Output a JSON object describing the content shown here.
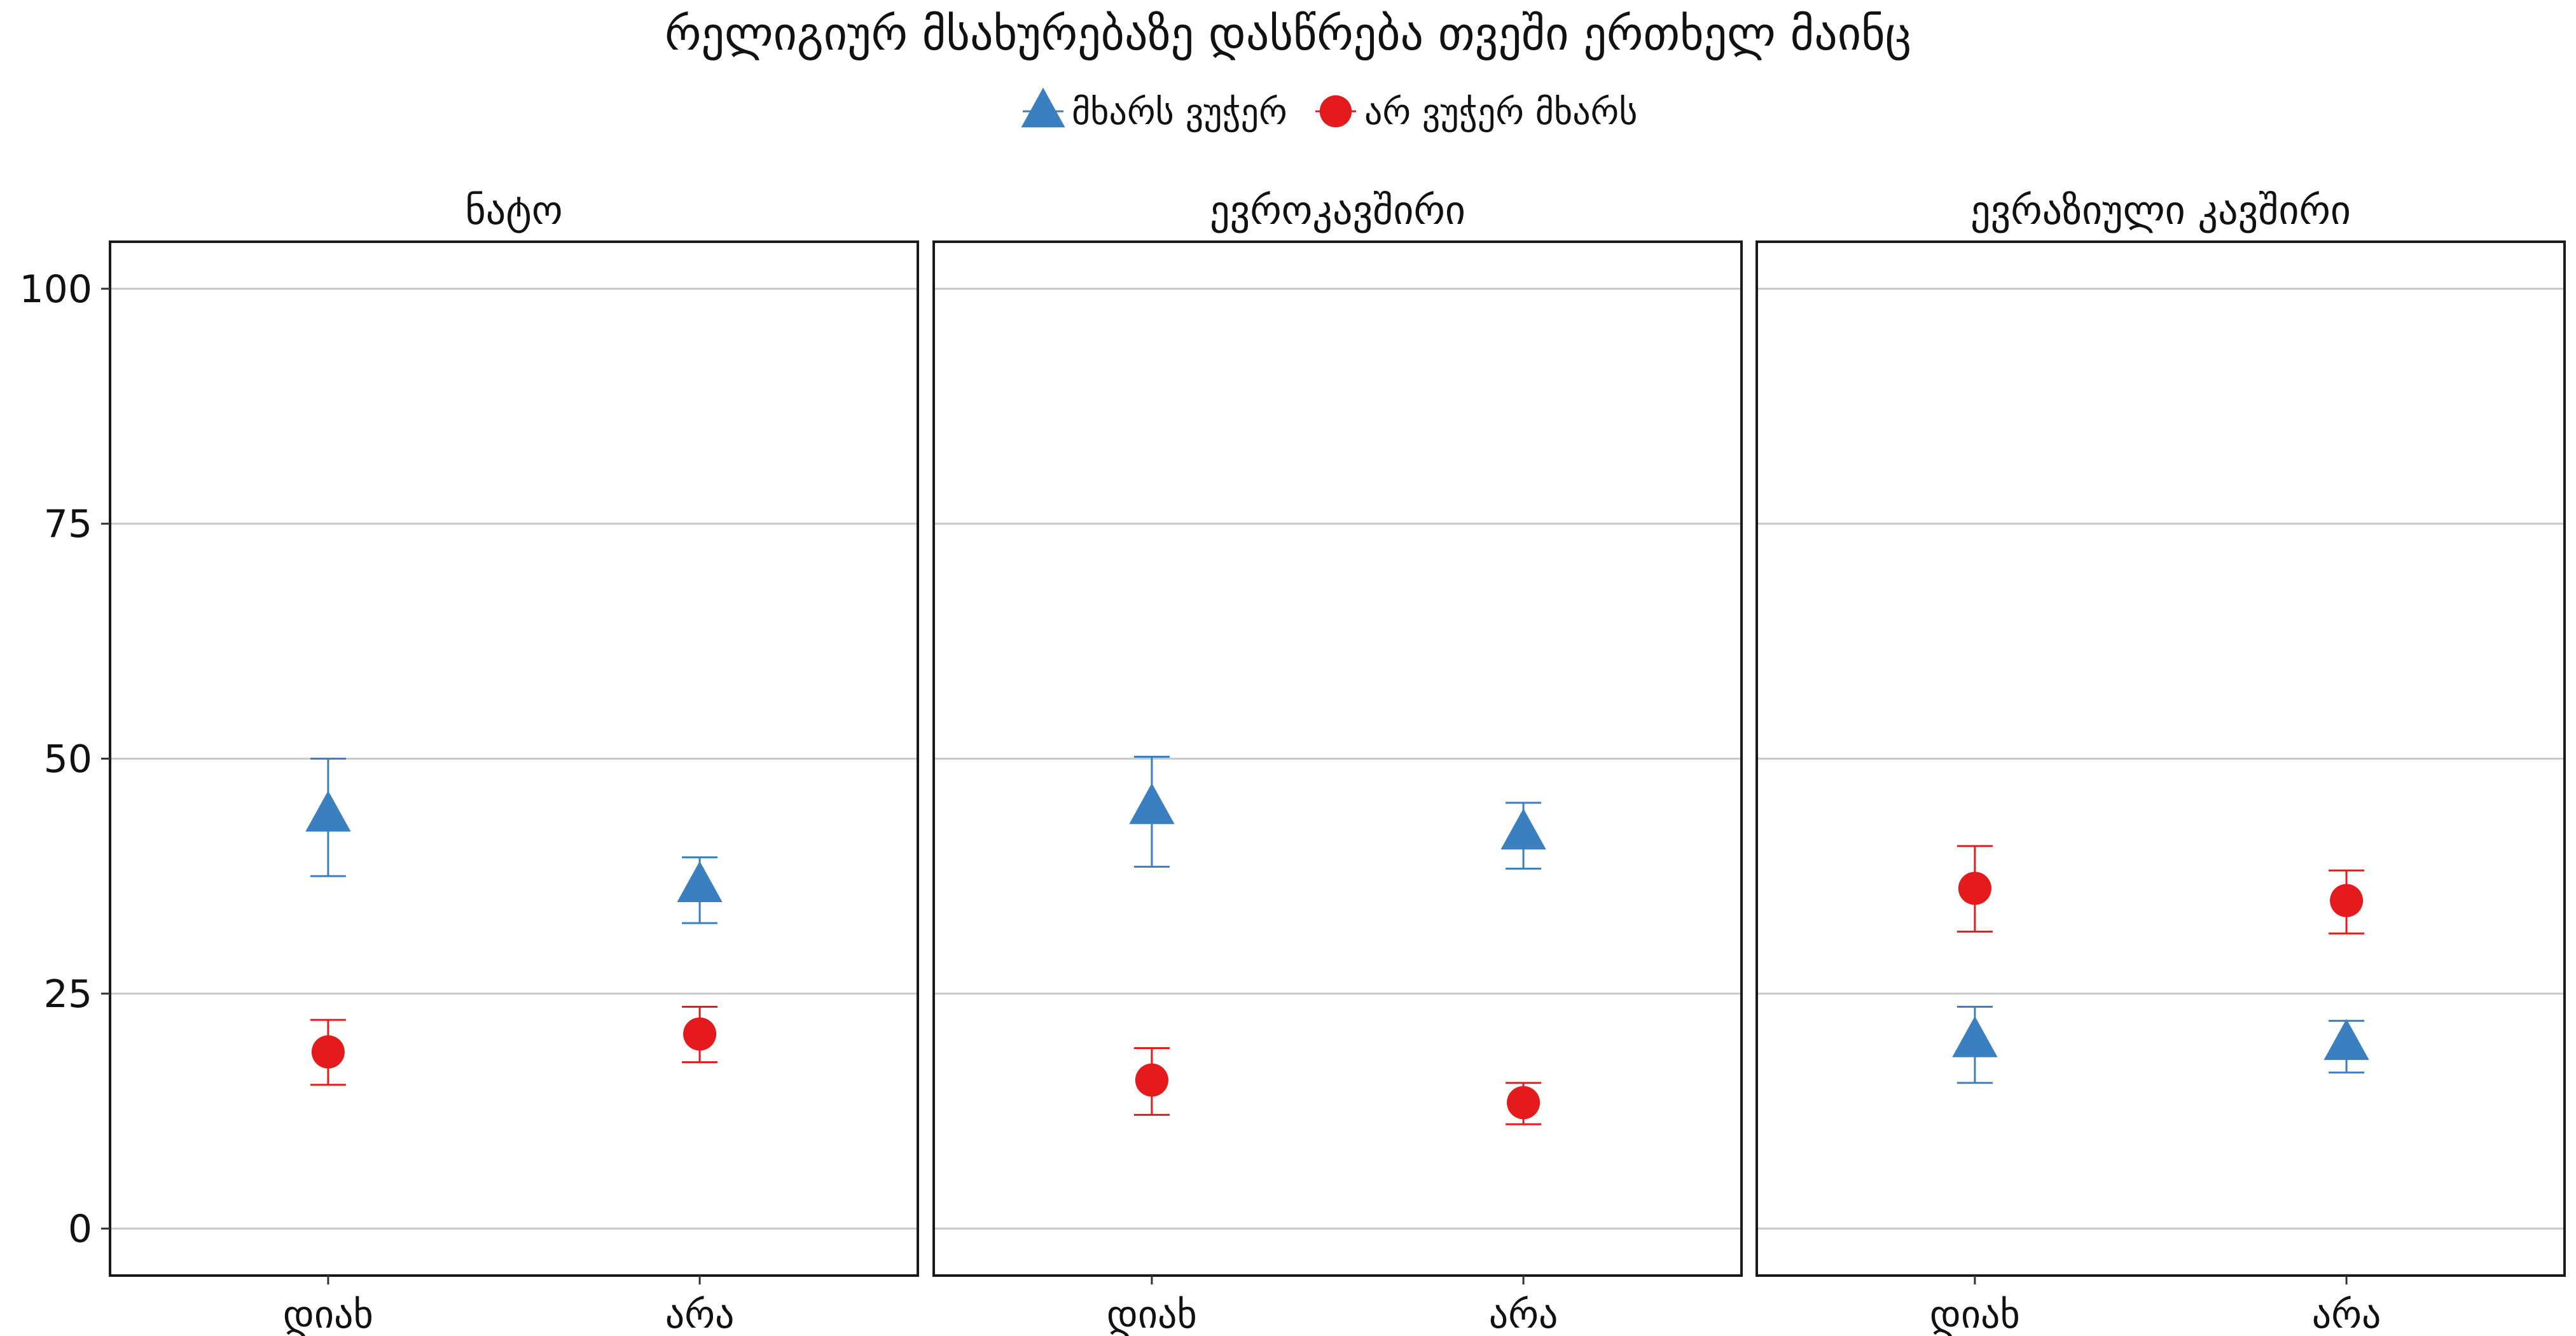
{
  "chart_data": {
    "type": "scatter",
    "title": "რელიგიურ მსახურებაზე დასწრება თვეში ერთხელ მაინც",
    "categories": [
      "დიახ",
      "არა"
    ],
    "y_ticks": [
      0,
      25,
      50,
      75,
      100
    ],
    "ylim": [
      -5,
      105
    ],
    "grid": true,
    "legend_position": "top",
    "series": [
      {
        "name": "მხარს ვუჭერ",
        "color": "#3a7fc0",
        "marker": "triangle-icon"
      },
      {
        "name": "არ ვუჭერ მხარს",
        "color": "#e41a1c",
        "marker": "circle-icon"
      }
    ],
    "panels": [
      {
        "title": "ნატო",
        "points": [
          {
            "series": 0,
            "category": 0,
            "value": 44,
            "low": 37.5,
            "high": 50
          },
          {
            "series": 0,
            "category": 1,
            "value": 36.5,
            "low": 32.5,
            "high": 39.5
          },
          {
            "series": 1,
            "category": 0,
            "value": 18.8,
            "low": 15.3,
            "high": 22.2
          },
          {
            "series": 1,
            "category": 1,
            "value": 20.7,
            "low": 17.7,
            "high": 23.6
          }
        ]
      },
      {
        "title": "ევროკავშირი",
        "points": [
          {
            "series": 0,
            "category": 0,
            "value": 44.8,
            "low": 38.5,
            "high": 50.2
          },
          {
            "series": 0,
            "category": 1,
            "value": 42.1,
            "low": 38.3,
            "high": 45.3
          },
          {
            "series": 1,
            "category": 0,
            "value": 15.8,
            "low": 12.1,
            "high": 19.2
          },
          {
            "series": 1,
            "category": 1,
            "value": 13.4,
            "low": 11.1,
            "high": 15.5
          }
        ]
      },
      {
        "title": "ევრაზიული კავშირი",
        "points": [
          {
            "series": 0,
            "category": 0,
            "value": 20,
            "low": 15.5,
            "high": 23.6
          },
          {
            "series": 0,
            "category": 1,
            "value": 19.7,
            "low": 16.6,
            "high": 22.1
          },
          {
            "series": 1,
            "category": 0,
            "value": 36.2,
            "low": 31.6,
            "high": 40.7
          },
          {
            "series": 1,
            "category": 1,
            "value": 34.9,
            "low": 31.4,
            "high": 38.1
          }
        ]
      }
    ]
  }
}
